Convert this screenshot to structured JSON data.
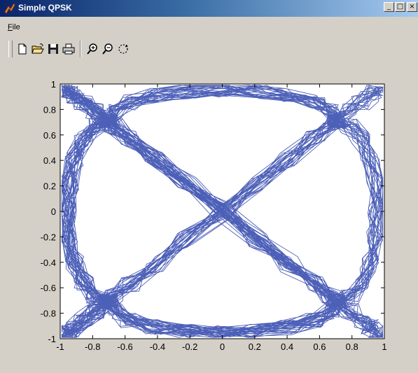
{
  "window": {
    "title": "Simple QPSK",
    "buttons": {
      "minimize": "_",
      "maximize": "□",
      "close": "×"
    }
  },
  "menu": {
    "file_mnemonic": "F",
    "file_rest": "ile"
  },
  "toolbar": {
    "tools": [
      {
        "name": "new-figure",
        "icon": "new-document-icon"
      },
      {
        "name": "open-file",
        "icon": "open-folder-icon"
      },
      {
        "name": "save-figure",
        "icon": "save-disk-icon"
      },
      {
        "name": "print-figure",
        "icon": "printer-icon"
      },
      {
        "name": "zoom-in",
        "icon": "zoom-in-icon"
      },
      {
        "name": "zoom-out",
        "icon": "zoom-out-icon"
      },
      {
        "name": "rotate-3d",
        "icon": "rotate-icon"
      }
    ]
  },
  "chart_data": {
    "type": "line",
    "title": "",
    "xlabel": "",
    "ylabel": "",
    "xlim": [
      -1,
      1
    ],
    "ylim": [
      -1,
      1
    ],
    "xticks": [
      -1,
      -0.8,
      -0.6,
      -0.4,
      -0.2,
      0,
      0.2,
      0.4,
      0.6,
      0.8,
      1
    ],
    "yticks": [
      -1,
      -0.8,
      -0.6,
      -0.4,
      -0.2,
      0,
      0.2,
      0.4,
      0.6,
      0.8,
      1
    ],
    "xtick_labels": [
      "-1",
      "-0.8",
      "-0.6",
      "-0.4",
      "-0.2",
      "0",
      "0.2",
      "0.4",
      "0.6",
      "0.8",
      "1"
    ],
    "ytick_labels": [
      "-1",
      "-0.8",
      "-0.6",
      "-0.4",
      "-0.2",
      "0",
      "0.2",
      "0.4",
      "0.6",
      "0.8",
      "1"
    ],
    "grid": false,
    "line_color": "#3a4fb0",
    "constellation_points": [
      [
        0.707,
        0.707
      ],
      [
        -0.707,
        0.707
      ],
      [
        -0.707,
        -0.707
      ],
      [
        0.707,
        -0.707
      ]
    ],
    "description_of_series": "QPSK I/Q trajectory; dense clusters near (±0.7, ±0.7) with transitions crossing origin"
  }
}
